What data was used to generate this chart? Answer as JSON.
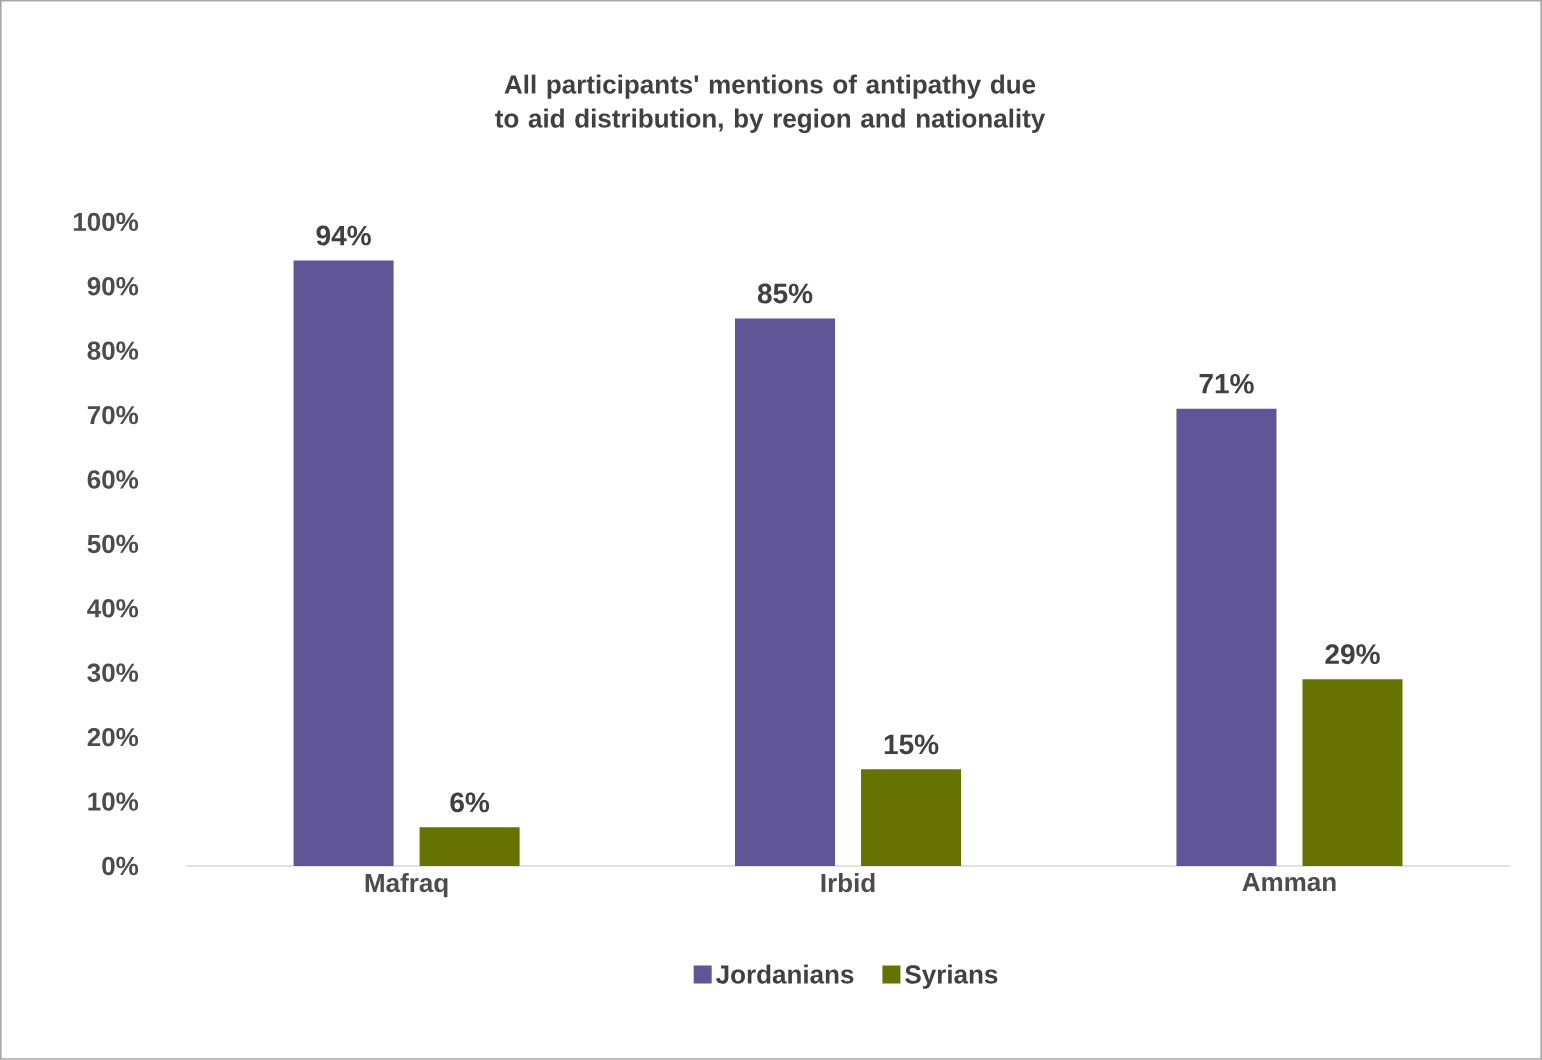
{
  "chart_data": {
    "type": "bar",
    "title": "All participants' mentions of antipathy due to aid distribution, by region and nationality",
    "categories": [
      "Mafraq",
      "Irbid",
      "Amman"
    ],
    "series": [
      {
        "name": "Jordanians",
        "color": "#5f5597",
        "values": [
          94,
          85,
          71
        ],
        "value_labels": [
          "94%",
          "85%",
          "71%"
        ]
      },
      {
        "name": "Syrians",
        "color": "#667300",
        "values": [
          6,
          15,
          29
        ],
        "value_labels": [
          "6%",
          "15%",
          "29%"
        ]
      }
    ],
    "ylim": [
      0,
      100
    ],
    "yticks": [
      {
        "value": 0,
        "label": "0%"
      },
      {
        "value": 10,
        "label": "10%"
      },
      {
        "value": 20,
        "label": "20%"
      },
      {
        "value": 30,
        "label": "30%"
      },
      {
        "value": 40,
        "label": "40%"
      },
      {
        "value": 50,
        "label": "50%"
      },
      {
        "value": 60,
        "label": "60%"
      },
      {
        "value": 70,
        "label": "70%"
      },
      {
        "value": 80,
        "label": "80%"
      },
      {
        "value": 90,
        "label": "90%"
      },
      {
        "value": 100,
        "label": "100%"
      }
    ],
    "legend": "bottom"
  }
}
